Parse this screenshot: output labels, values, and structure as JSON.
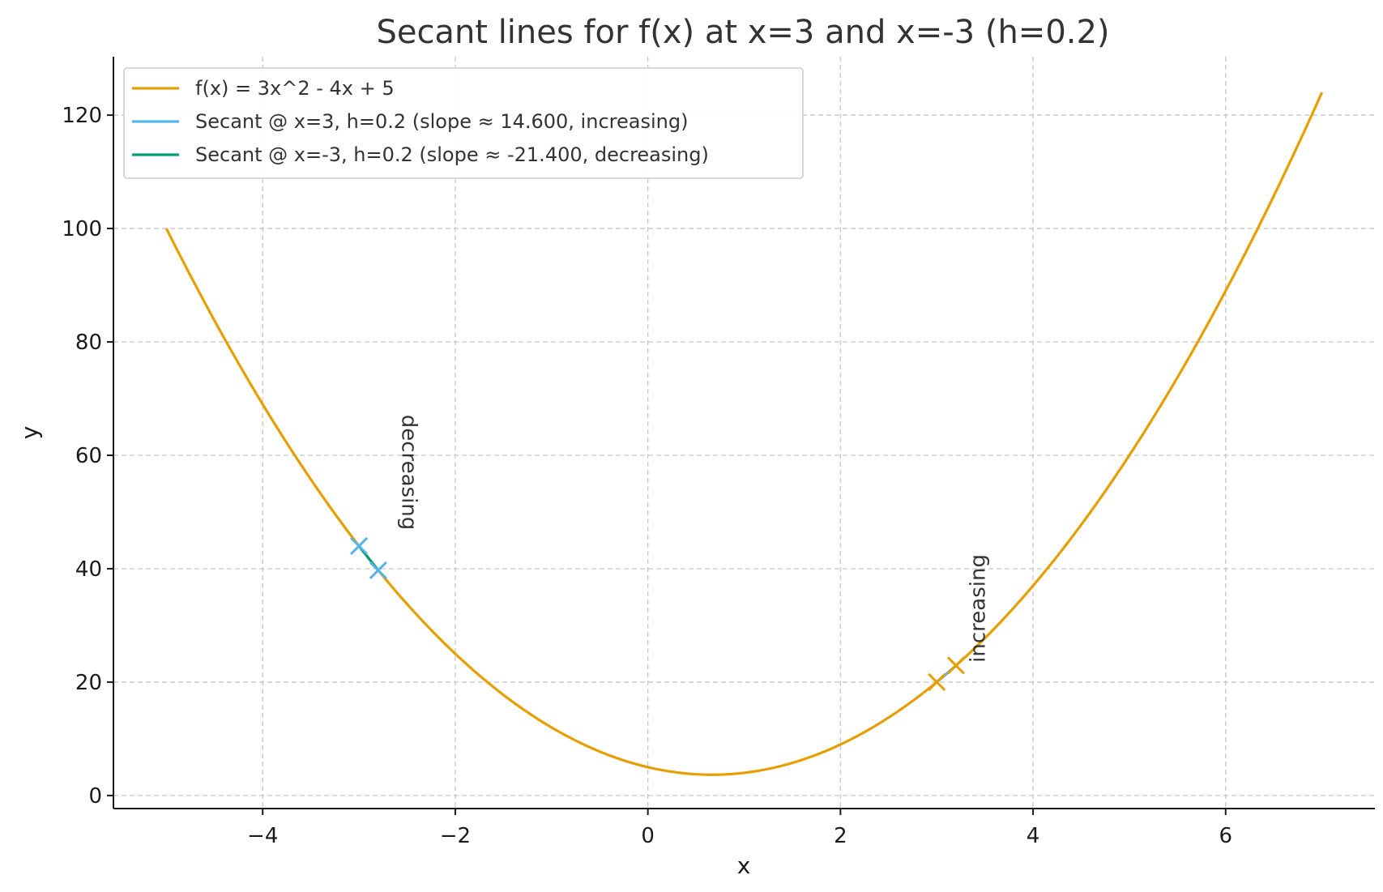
{
  "chart_data": {
    "type": "line",
    "title": "Secant lines for f(x) at x=3 and x=-3 (h=0.2)",
    "xlabel": "x",
    "ylabel": "y",
    "xlim": [
      -5.55,
      7.55
    ],
    "ylim": [
      -2.3,
      130.3
    ],
    "xticks": [
      -4,
      -2,
      0,
      2,
      4,
      6
    ],
    "xtick_labels": [
      "−4",
      "−2",
      "0",
      "2",
      "4",
      "6"
    ],
    "yticks": [
      0,
      20,
      40,
      60,
      80,
      100,
      120
    ],
    "ytick_labels": [
      "0",
      "20",
      "40",
      "60",
      "80",
      "100",
      "120"
    ],
    "grid": true,
    "legend_position": "top-left",
    "function": {
      "a": 3,
      "b": -4,
      "c": 5,
      "x_start": -5,
      "x_end": 7
    },
    "series": [
      {
        "name": "f(x) = 3x^2 - 4x + 5",
        "color": "#E69F00",
        "kind": "curve"
      },
      {
        "name": "Secant @ x=3, h=0.2 (slope ≈ 14.600, increasing)",
        "color": "#56B4E9",
        "kind": "secant",
        "x0": 3,
        "x1": 3.2,
        "y0": 20,
        "y1": 22.92
      },
      {
        "name": "Secant @ x=-3, h=0.2 (slope ≈ -21.400, decreasing)",
        "color": "#009E73",
        "kind": "secant",
        "x0": -3,
        "x1": -2.8,
        "y0": 44,
        "y1": 39.72
      }
    ],
    "markers": [
      {
        "x": 3,
        "y": 20,
        "color": "#E69F00"
      },
      {
        "x": 3.2,
        "y": 22.92,
        "color": "#E69F00"
      },
      {
        "x": -3,
        "y": 44,
        "color": "#56B4E9"
      },
      {
        "x": -2.8,
        "y": 39.72,
        "color": "#56B4E9"
      }
    ],
    "annotations": [
      {
        "text": "increasing",
        "x": 3.5,
        "y": 33
      },
      {
        "text": "decreasing",
        "x": -2.55,
        "y": 57
      }
    ]
  }
}
